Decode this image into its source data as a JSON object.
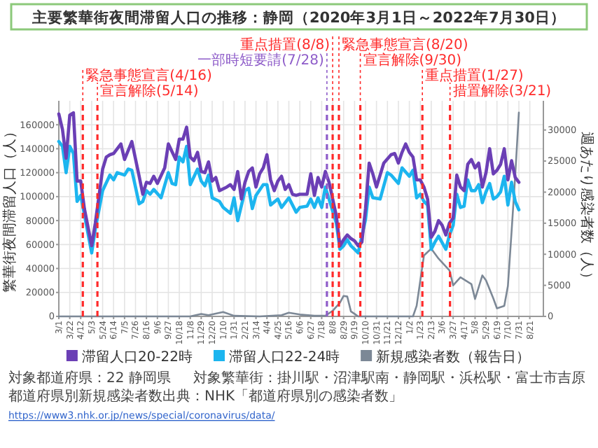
{
  "chart_data": {
    "type": "line",
    "title": "主要繁華街夜間滞留人口の推移：静岡（2020年3月1日～2022年7月30日）",
    "ylabel": "繁華街夜間滞留人口（人）",
    "y2label": "週あたり感染者数（人）",
    "xlim": [
      "2020-03-01",
      "2022-09-16"
    ],
    "xticks": [
      {
        "value": "2020-03-01",
        "label": "3/1"
      },
      {
        "value": "2020-03-22",
        "label": "3/22"
      },
      {
        "value": "2020-04-12",
        "label": "4/12"
      },
      {
        "value": "2020-05-03",
        "label": "5/3"
      },
      {
        "value": "2020-05-24",
        "label": "5/24"
      },
      {
        "value": "2020-06-14",
        "label": "6/14"
      },
      {
        "value": "2020-07-05",
        "label": "7/5"
      },
      {
        "value": "2020-07-26",
        "label": "7/26"
      },
      {
        "value": "2020-08-16",
        "label": "8/16"
      },
      {
        "value": "2020-09-06",
        "label": "9/6"
      },
      {
        "value": "2020-09-27",
        "label": "9/27"
      },
      {
        "value": "2020-10-18",
        "label": "10/18"
      },
      {
        "value": "2020-11-08",
        "label": "11/8"
      },
      {
        "value": "2020-11-29",
        "label": "11/29"
      },
      {
        "value": "2020-12-20",
        "label": "12/20"
      },
      {
        "value": "2021-01-10",
        "label": "1/10"
      },
      {
        "value": "2021-01-31",
        "label": "1/31"
      },
      {
        "value": "2021-02-21",
        "label": "2/21"
      },
      {
        "value": "2021-03-14",
        "label": "3/14"
      },
      {
        "value": "2021-04-04",
        "label": "4/4"
      },
      {
        "value": "2021-04-25",
        "label": "4/25"
      },
      {
        "value": "2021-05-16",
        "label": "5/16"
      },
      {
        "value": "2021-06-06",
        "label": "6/6"
      },
      {
        "value": "2021-06-27",
        "label": "6/27"
      },
      {
        "value": "2021-07-18",
        "label": "7/18"
      },
      {
        "value": "2021-08-08",
        "label": "8/8"
      },
      {
        "value": "2021-08-29",
        "label": "8/29"
      },
      {
        "value": "2021-09-19",
        "label": "9/19"
      },
      {
        "value": "2021-10-10",
        "label": "10/10"
      },
      {
        "value": "2021-10-31",
        "label": "10/31"
      },
      {
        "value": "2021-11-21",
        "label": "11/21"
      },
      {
        "value": "2021-12-12",
        "label": "12/12"
      },
      {
        "value": "2022-01-02",
        "label": "1/2"
      },
      {
        "value": "2022-01-23",
        "label": "1/23"
      },
      {
        "value": "2022-02-13",
        "label": "2/13"
      },
      {
        "value": "2022-03-06",
        "label": "3/6"
      },
      {
        "value": "2022-03-27",
        "label": "3/27"
      },
      {
        "value": "2022-04-17",
        "label": "4/17"
      },
      {
        "value": "2022-05-08",
        "label": "5/8"
      },
      {
        "value": "2022-05-29",
        "label": "5/29"
      },
      {
        "value": "2022-06-19",
        "label": "6/19"
      },
      {
        "value": "2022-07-10",
        "label": "7/10"
      },
      {
        "value": "2022-07-31",
        "label": "7/31"
      },
      {
        "value": "2022-08-21",
        "label": "8/21"
      }
    ],
    "ylim": [
      0,
      180000
    ],
    "yticks": [
      0,
      20000,
      40000,
      60000,
      80000,
      100000,
      120000,
      140000,
      160000
    ],
    "y2lim": [
      0,
      34700
    ],
    "y2ticks": [
      0,
      5000,
      10000,
      15000,
      20000,
      25000,
      30000
    ],
    "grid": true,
    "legend": "bottom",
    "series": [
      {
        "name": "滞留人口20-22時",
        "color": "#6b3fb5",
        "x": [
          "2020-03-01",
          "2020-03-08",
          "2020-03-15",
          "2020-03-22",
          "2020-03-29",
          "2020-04-05",
          "2020-04-12",
          "2020-04-19",
          "2020-05-03",
          "2020-05-10",
          "2020-05-24",
          "2020-05-31",
          "2020-06-07",
          "2020-06-14",
          "2020-06-28",
          "2020-07-05",
          "2020-07-19",
          "2020-08-02",
          "2020-08-09",
          "2020-08-16",
          "2020-08-23",
          "2020-08-30",
          "2020-09-06",
          "2020-09-20",
          "2020-09-27",
          "2020-10-11",
          "2020-10-18",
          "2020-10-25",
          "2020-11-01",
          "2020-11-08",
          "2020-11-15",
          "2020-11-22",
          "2020-11-29",
          "2020-12-06",
          "2020-12-13",
          "2020-12-20",
          "2020-12-27",
          "2021-01-03",
          "2021-01-17",
          "2021-01-24",
          "2021-01-31",
          "2021-02-07",
          "2021-02-14",
          "2021-02-21",
          "2021-02-28",
          "2021-03-07",
          "2021-03-14",
          "2021-03-21",
          "2021-03-28",
          "2021-04-04",
          "2021-04-11",
          "2021-04-18",
          "2021-04-25",
          "2021-05-02",
          "2021-05-09",
          "2021-05-16",
          "2021-05-23",
          "2021-05-30",
          "2021-06-06",
          "2021-06-20",
          "2021-06-27",
          "2021-07-04",
          "2021-07-11",
          "2021-07-18",
          "2021-07-25",
          "2021-08-01",
          "2021-08-15",
          "2021-08-22",
          "2021-08-29",
          "2021-09-05",
          "2021-09-12",
          "2021-09-19",
          "2021-09-26",
          "2021-10-03",
          "2021-10-10",
          "2021-10-17",
          "2021-10-24",
          "2021-10-31",
          "2021-11-07",
          "2021-11-14",
          "2021-11-28",
          "2021-12-05",
          "2021-12-12",
          "2021-12-19",
          "2021-12-26",
          "2022-01-02",
          "2022-01-09",
          "2022-01-16",
          "2022-01-23",
          "2022-01-30",
          "2022-02-06",
          "2022-02-13",
          "2022-02-20",
          "2022-02-27",
          "2022-03-06",
          "2022-03-13",
          "2022-03-20",
          "2022-03-27",
          "2022-04-03",
          "2022-04-10",
          "2022-04-17",
          "2022-04-24",
          "2022-05-01",
          "2022-05-08",
          "2022-05-15",
          "2022-05-22",
          "2022-05-29",
          "2022-06-05",
          "2022-06-12",
          "2022-06-19",
          "2022-06-26",
          "2022-07-03",
          "2022-07-10",
          "2022-07-17",
          "2022-07-24",
          "2022-07-31"
        ],
        "values": [
          169000,
          156000,
          132000,
          168000,
          170000,
          113000,
          113000,
          90000,
          59000,
          78000,
          123000,
          133000,
          135000,
          136000,
          144000,
          131000,
          146000,
          117000,
          102000,
          112000,
          111000,
          117000,
          111000,
          124000,
          144000,
          131000,
          148000,
          148000,
          158000,
          133000,
          130000,
          137000,
          121000,
          120000,
          129000,
          113000,
          116000,
          105000,
          108000,
          110000,
          106000,
          121000,
          98000,
          112000,
          121000,
          124000,
          108000,
          119000,
          124000,
          135000,
          114000,
          105000,
          113000,
          117000,
          106000,
          110000,
          102000,
          101000,
          102000,
          102000,
          119000,
          101000,
          116000,
          108000,
          121000,
          112000,
          84000,
          59000,
          64000,
          68000,
          65000,
          63000,
          59000,
          62000,
          90000,
          128000,
          119000,
          108000,
          118000,
          128000,
          135000,
          136000,
          128000,
          137000,
          144000,
          137000,
          133000,
          114000,
          114000,
          108000,
          98000,
          66000,
          71000,
          80000,
          76000,
          68000,
          78000,
          82000,
          118000,
          108000,
          105000,
          127000,
          131000,
          124000,
          128000,
          108000,
          120000,
          140000,
          119000,
          122000,
          127000,
          140000,
          114000,
          130000,
          116000,
          112000
        ]
      },
      {
        "name": "滞留人口22-24時",
        "color": "#1cb5ef",
        "x": [
          "2020-03-01",
          "2020-03-08",
          "2020-03-15",
          "2020-03-22",
          "2020-03-29",
          "2020-04-05",
          "2020-04-12",
          "2020-04-19",
          "2020-05-03",
          "2020-05-10",
          "2020-05-24",
          "2020-06-07",
          "2020-06-14",
          "2020-06-21",
          "2020-07-05",
          "2020-07-12",
          "2020-07-19",
          "2020-08-02",
          "2020-08-09",
          "2020-08-16",
          "2020-08-23",
          "2020-08-30",
          "2020-09-13",
          "2020-09-27",
          "2020-10-04",
          "2020-10-11",
          "2020-10-18",
          "2020-10-25",
          "2020-11-01",
          "2020-11-08",
          "2020-11-22",
          "2020-11-29",
          "2020-12-06",
          "2020-12-13",
          "2020-12-20",
          "2021-01-03",
          "2021-01-10",
          "2021-01-24",
          "2021-01-31",
          "2021-02-07",
          "2021-02-21",
          "2021-02-28",
          "2021-03-07",
          "2021-03-14",
          "2021-03-28",
          "2021-04-04",
          "2021-04-11",
          "2021-04-25",
          "2021-05-02",
          "2021-05-16",
          "2021-05-30",
          "2021-06-06",
          "2021-06-20",
          "2021-06-27",
          "2021-07-04",
          "2021-07-11",
          "2021-07-18",
          "2021-07-25",
          "2021-08-01",
          "2021-08-15",
          "2021-08-22",
          "2021-08-29",
          "2021-09-05",
          "2021-09-12",
          "2021-09-19",
          "2021-09-26",
          "2021-10-10",
          "2021-10-17",
          "2021-10-24",
          "2021-11-07",
          "2021-11-21",
          "2021-11-28",
          "2021-12-12",
          "2021-12-19",
          "2022-01-02",
          "2022-01-09",
          "2022-01-16",
          "2022-01-23",
          "2022-01-30",
          "2022-02-06",
          "2022-02-13",
          "2022-02-20",
          "2022-02-27",
          "2022-03-13",
          "2022-03-20",
          "2022-03-27",
          "2022-04-03",
          "2022-04-10",
          "2022-04-17",
          "2022-04-24",
          "2022-05-01",
          "2022-05-08",
          "2022-05-15",
          "2022-05-22",
          "2022-05-29",
          "2022-06-05",
          "2022-06-12",
          "2022-06-19",
          "2022-06-26",
          "2022-07-03",
          "2022-07-10",
          "2022-07-17",
          "2022-07-24",
          "2022-07-31"
        ],
        "values": [
          146000,
          142000,
          120000,
          142000,
          136000,
          96000,
          101000,
          85000,
          53000,
          73000,
          105000,
          118000,
          114000,
          120000,
          118000,
          123000,
          122000,
          94000,
          96000,
          105000,
          102000,
          106000,
          99000,
          120000,
          111000,
          110000,
          133000,
          129000,
          142000,
          110000,
          123000,
          113000,
          109000,
          118000,
          99000,
          96000,
          91000,
          86000,
          99000,
          80000,
          105000,
          107000,
          90000,
          101000,
          110000,
          110000,
          93000,
          98000,
          91000,
          99000,
          87000,
          91000,
          92000,
          98000,
          91000,
          99000,
          91000,
          108000,
          98000,
          78000,
          56000,
          59000,
          64000,
          59000,
          56000,
          53000,
          81000,
          108000,
          99000,
          98000,
          120000,
          118000,
          111000,
          124000,
          117000,
          122000,
          99000,
          102000,
          96000,
          93000,
          56000,
          62000,
          67000,
          56000,
          68000,
          76000,
          102000,
          91000,
          92000,
          114000,
          105000,
          105000,
          110000,
          95000,
          104000,
          111000,
          98000,
          100000,
          104000,
          117000,
          93000,
          112000,
          96000,
          89000
        ]
      },
      {
        "name": "新規感染者数（報告日）",
        "color": "#7c8896",
        "axis": "y2",
        "x": [
          "2020-03-01",
          "2020-05-10",
          "2020-09-27",
          "2020-11-08",
          "2020-11-29",
          "2020-12-13",
          "2021-01-10",
          "2021-01-31",
          "2021-03-21",
          "2021-05-02",
          "2021-05-16",
          "2021-06-06",
          "2021-07-04",
          "2021-07-25",
          "2021-08-08",
          "2021-08-22",
          "2021-08-29",
          "2021-09-05",
          "2021-09-12",
          "2021-09-26",
          "2022-01-09",
          "2022-01-16",
          "2022-01-30",
          "2022-02-13",
          "2022-02-27",
          "2022-03-20",
          "2022-03-27",
          "2022-04-10",
          "2022-05-01",
          "2022-05-08",
          "2022-05-22",
          "2022-05-29",
          "2022-06-12",
          "2022-06-19",
          "2022-07-03",
          "2022-07-10",
          "2022-07-17",
          "2022-07-24",
          "2022-07-31"
        ],
        "values": [
          0,
          0,
          0,
          0,
          400,
          200,
          700,
          100,
          0,
          200,
          600,
          300,
          100,
          100,
          900,
          2200,
          3300,
          3200,
          800,
          0,
          0,
          1700,
          9800,
          10900,
          9300,
          7400,
          5000,
          6300,
          5200,
          2800,
          6600,
          5800,
          2900,
          1300,
          1700,
          4900,
          13600,
          22700,
          32800
        ]
      }
    ],
    "ref_lines": [
      {
        "axis": "x",
        "value": "2020-04-16",
        "label": "緊急事態宣言(4/16)",
        "color": "#ff2a2a",
        "line_style": "dashed"
      },
      {
        "axis": "x",
        "value": "2020-05-14",
        "label": "宣言解除(5/14)",
        "color": "#ff2a2a",
        "line_style": "dashed"
      },
      {
        "axis": "x",
        "value": "2021-07-28",
        "label": "一部時短要請(7/28)",
        "color": "#8e5cc9",
        "line_style": "dashed"
      },
      {
        "axis": "x",
        "value": "2021-08-08",
        "label": "重点措置(8/8)",
        "color": "#ff2a2a",
        "line_style": "dashed"
      },
      {
        "axis": "x",
        "value": "2021-08-20",
        "label": "緊急事態宣言(8/20)",
        "color": "#ff2a2a",
        "line_style": "dashed"
      },
      {
        "axis": "x",
        "value": "2021-09-30",
        "label": "宣言解除(9/30)",
        "color": "#ff2a2a",
        "line_style": "dashed"
      },
      {
        "axis": "x",
        "value": "2022-01-27",
        "label": "重点措置(1/27)",
        "color": "#ff2a2a",
        "line_style": "dashed"
      },
      {
        "axis": "x",
        "value": "2022-03-21",
        "label": "措置解除(3/21)",
        "color": "#ff2a2a",
        "line_style": "dashed"
      }
    ],
    "annotations": [
      "対象都道府県：22 静岡県",
      "対象繁華街：掛川駅・沼津駅南・静岡駅・浜松駅・富士市吉原",
      "都道府県別新規感染者数出典：NHK「都道府県別の感染者数」",
      "https://www3.nhk.or.jp/news/special/coronavirus/data/"
    ]
  }
}
